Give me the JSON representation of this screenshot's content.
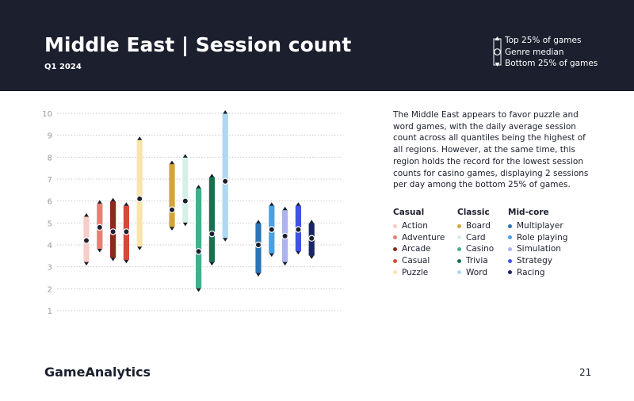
{
  "header": {
    "title": "Middle East | Session count",
    "subtitle": "Q1 2024",
    "legend": {
      "top": "Top 25% of games",
      "median": "Genre median",
      "bottom": "Bottom 25% of games"
    }
  },
  "description": "The Middle East appears to favor puzzle and word games, with the daily average session count across all quantiles being the highest of all regions. However, at the same time, this region holds the record for the lowest session counts for casino games, displaying 2 sessions per day among the bottom 25% of games.",
  "legend": {
    "groups": [
      {
        "title": "Casual",
        "items": [
          {
            "label": "Action",
            "color": "#f6cdc7"
          },
          {
            "label": "Adventure",
            "color": "#e57f73"
          },
          {
            "label": "Arcade",
            "color": "#8a2a1d"
          },
          {
            "label": "Casual",
            "color": "#d9473b"
          },
          {
            "label": "Puzzle",
            "color": "#fae4ae"
          }
        ]
      },
      {
        "title": "Classic",
        "items": [
          {
            "label": "Board",
            "color": "#d4a43a"
          },
          {
            "label": "Card",
            "color": "#d2f0e7"
          },
          {
            "label": "Casino",
            "color": "#41b08e"
          },
          {
            "label": "Trivia",
            "color": "#18704e"
          },
          {
            "label": "Word",
            "color": "#acd8f2"
          }
        ]
      },
      {
        "title": "Mid-core",
        "items": [
          {
            "label": "Multiplayer",
            "color": "#2b74b5"
          },
          {
            "label": "Role playing",
            "color": "#4aa0e2"
          },
          {
            "label": "Simulation",
            "color": "#aeb2ee"
          },
          {
            "label": "Strategy",
            "color": "#4052e6"
          },
          {
            "label": "Racing",
            "color": "#1a2563"
          }
        ]
      }
    ]
  },
  "chart_data": {
    "type": "range",
    "title": "Middle East | Session count",
    "ylim": [
      1,
      10
    ],
    "yticks": [
      "1",
      "2",
      "3",
      "4",
      "5",
      "6",
      "7",
      "8",
      "9",
      "10"
    ],
    "series": [
      {
        "name": "Action",
        "group": "Casual",
        "top": 5.3,
        "median": 4.2,
        "bottom": 3.2,
        "color": "#f6cdc7"
      },
      {
        "name": "Adventure",
        "group": "Casual",
        "top": 5.9,
        "median": 4.8,
        "bottom": 3.8,
        "color": "#e57f73"
      },
      {
        "name": "Arcade",
        "group": "Casual",
        "top": 6.0,
        "median": 4.6,
        "bottom": 3.4,
        "color": "#8a2a1d"
      },
      {
        "name": "Casual",
        "group": "Casual",
        "top": 5.8,
        "median": 4.6,
        "bottom": 3.3,
        "color": "#d9473b"
      },
      {
        "name": "Puzzle",
        "group": "Casual",
        "top": 8.8,
        "median": 6.1,
        "bottom": 3.9,
        "color": "#fae4ae"
      },
      {
        "name": "Board",
        "group": "Classic",
        "top": 7.7,
        "median": 5.6,
        "bottom": 4.8,
        "color": "#d4a43a"
      },
      {
        "name": "Card",
        "group": "Classic",
        "top": 8.0,
        "median": 6.0,
        "bottom": 5.0,
        "color": "#d2f0e7"
      },
      {
        "name": "Casino",
        "group": "Classic",
        "top": 6.6,
        "median": 3.7,
        "bottom": 2.0,
        "color": "#41b08e"
      },
      {
        "name": "Trivia",
        "group": "Classic",
        "top": 7.1,
        "median": 4.5,
        "bottom": 3.2,
        "color": "#18704e"
      },
      {
        "name": "Word",
        "group": "Classic",
        "top": 10.0,
        "median": 6.9,
        "bottom": 4.3,
        "color": "#acd8f2"
      },
      {
        "name": "Multiplayer",
        "group": "Mid-core",
        "top": 5.0,
        "median": 4.0,
        "bottom": 2.7,
        "color": "#2b74b5"
      },
      {
        "name": "Role playing",
        "group": "Mid-core",
        "top": 5.8,
        "median": 4.7,
        "bottom": 3.6,
        "color": "#4aa0e2"
      },
      {
        "name": "Simulation",
        "group": "Mid-core",
        "top": 5.6,
        "median": 4.4,
        "bottom": 3.2,
        "color": "#aeb2ee"
      },
      {
        "name": "Strategy",
        "group": "Mid-core",
        "top": 5.8,
        "median": 4.7,
        "bottom": 3.7,
        "color": "#4052e6"
      },
      {
        "name": "Racing",
        "group": "Mid-core",
        "top": 5.0,
        "median": 4.3,
        "bottom": 3.5,
        "color": "#1a2563"
      }
    ]
  },
  "footer": {
    "logo": "GameAnalytics",
    "page_number": "21"
  }
}
